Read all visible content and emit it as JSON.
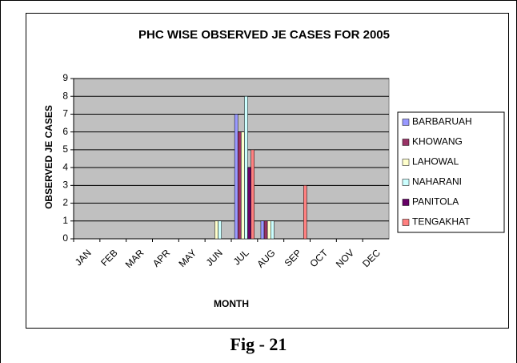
{
  "chart_data": {
    "type": "bar",
    "title": "PHC WISE OBSERVED JE CASES FOR 2005",
    "x_label": "MONTH",
    "y_label": "OBSERVED JE CASES",
    "caption": "Fig - 21",
    "categories": [
      "JAN",
      "FEB",
      "MAR",
      "APR",
      "MAY",
      "JUN",
      "JUL",
      "AUG",
      "SEP",
      "OCT",
      "NOV",
      "DEC"
    ],
    "series": [
      {
        "name": "BARBARUAH",
        "color": "#9999ff",
        "values": [
          0,
          0,
          0,
          0,
          0,
          0,
          7,
          1,
          0,
          0,
          0,
          0
        ]
      },
      {
        "name": "KHOWANG",
        "color": "#993366",
        "values": [
          0,
          0,
          0,
          0,
          0,
          0,
          6,
          1,
          0,
          0,
          0,
          0
        ]
      },
      {
        "name": "LAHOWAL",
        "color": "#ffffcc",
        "values": [
          0,
          0,
          0,
          0,
          0,
          1,
          6,
          1,
          0,
          0,
          0,
          0
        ]
      },
      {
        "name": "NAHARANI",
        "color": "#ccffff",
        "values": [
          0,
          0,
          0,
          0,
          0,
          1,
          8,
          1,
          0,
          0,
          0,
          0
        ]
      },
      {
        "name": "PANITOLA",
        "color": "#660066",
        "values": [
          0,
          0,
          0,
          0,
          0,
          0,
          4,
          0,
          0,
          0,
          0,
          0
        ]
      },
      {
        "name": "TENGAKHAT",
        "color": "#ff8080",
        "values": [
          0,
          0,
          0,
          0,
          0,
          0,
          5,
          0,
          3,
          0,
          0,
          0
        ]
      }
    ],
    "ylim": [
      0,
      9
    ],
    "yticks": [
      0,
      1,
      2,
      3,
      4,
      5,
      6,
      7,
      8,
      9
    ],
    "grid": true,
    "plot_background": "#c0c0c0",
    "legend": "right"
  }
}
